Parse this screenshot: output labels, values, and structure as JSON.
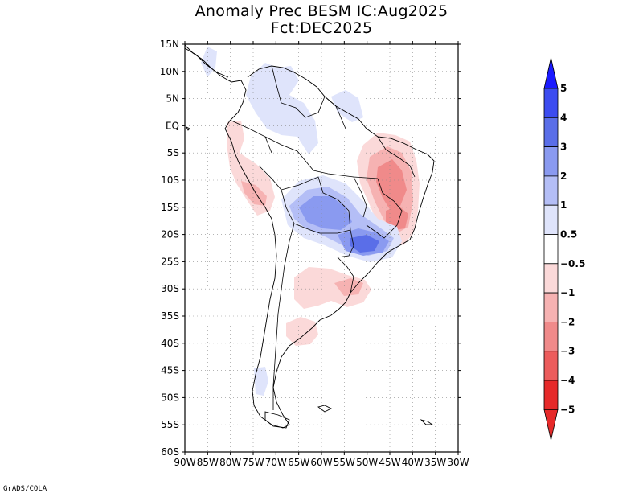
{
  "title": {
    "line1": "Anomaly Prec BESM IC:Aug2025",
    "line2": "Fct:DEC2025"
  },
  "footer": "GrADS/COLA",
  "lat_labels": [
    "15N",
    "10N",
    "5N",
    "EQ",
    "5S",
    "10S",
    "15S",
    "20S",
    "25S",
    "30S",
    "35S",
    "40S",
    "45S",
    "50S",
    "55S",
    "60S"
  ],
  "lon_labels": [
    "90W",
    "85W",
    "80W",
    "75W",
    "70W",
    "65W",
    "60W",
    "55W",
    "50W",
    "45W",
    "40W",
    "35W",
    "30W"
  ],
  "colorbar": {
    "labels": [
      "5",
      "4",
      "3",
      "2",
      "1",
      "0.5",
      "−0.5",
      "−1",
      "−2",
      "−3",
      "−4",
      "−5"
    ],
    "colors": [
      "#1a1aff",
      "#3c4cf0",
      "#5a6ee8",
      "#8a9af0",
      "#b4bef6",
      "#dfe4fb",
      "#ffffff",
      "#fbd9d9",
      "#f6b2b2",
      "#f08a8a",
      "#ec5c5c",
      "#e62a2a"
    ]
  },
  "map_colors": {
    "blue_light": "#dfe4fb",
    "blue_mid": "#b4bef6",
    "blue_strong": "#8a9af0",
    "blue_deep": "#5a6ee8",
    "red_light": "#fbd9d9",
    "red_mid": "#f6b2b2",
    "red_strong": "#f08a8a"
  }
}
